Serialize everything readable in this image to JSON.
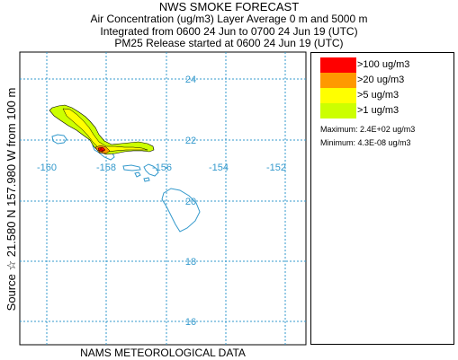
{
  "title": "NWS SMOKE FORECAST",
  "subtitle1": "Air Concentration (ug/m3) Layer Average    0 m and  5000 m",
  "subtitle2": "Integrated from 0600 24 Jun to 0700 24 Jun 19 (UTC)",
  "subtitle3": "PM25 Release started at 0600 24 Jun 19 (UTC)",
  "footer": "NAMS METEOROLOGICAL DATA",
  "source_label": "Source ☆ 21.580 N 157.980  W    from  100 m",
  "grid": {
    "lat_labels": [
      "24",
      "22",
      "20",
      "18",
      "16"
    ],
    "lon_labels": [
      "-160",
      "-158",
      "-156",
      "-154",
      "-152"
    ],
    "color": "#3399cc"
  },
  "legend": {
    "items": [
      {
        "label": ">100 ug/m3",
        "color": "#ff0000"
      },
      {
        "label": ">20 ug/m3",
        "color": "#ff9900"
      },
      {
        "label": ">5 ug/m3",
        "color": "#ffff00"
      },
      {
        "label": ">1 ug/m3",
        "color": "#ccff00"
      }
    ],
    "maximum": "Maximum: 2.4E+02 ug/m3",
    "minimum": "Minimum: 4.3E-08 ug/m3"
  },
  "source": {
    "lat": 21.58,
    "lon": -157.98
  }
}
